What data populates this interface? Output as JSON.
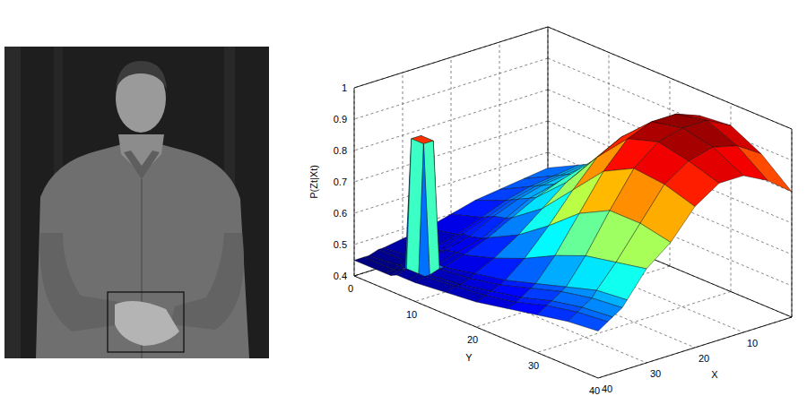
{
  "chart_data": {
    "type": "surface",
    "zlabel": "P(Zt|Xt)",
    "xlabel": "X",
    "ylabel": "Y",
    "x": [
      0,
      5,
      10,
      15,
      20,
      25,
      30,
      34,
      35,
      37,
      38,
      40
    ],
    "y": [
      0,
      5,
      6,
      7,
      9,
      10,
      15,
      20,
      25,
      30,
      35,
      40
    ],
    "z": [
      [
        0.55,
        0.54,
        0.53,
        0.52,
        0.5,
        0.48,
        0.47,
        0.46,
        0.46,
        0.45,
        0.45,
        0.45
      ],
      [
        0.6,
        0.59,
        0.58,
        0.56,
        0.53,
        0.5,
        0.48,
        0.47,
        0.46,
        0.46,
        0.45,
        0.45
      ],
      [
        0.61,
        0.6,
        0.59,
        0.57,
        0.54,
        0.51,
        0.48,
        0.47,
        0.47,
        0.46,
        0.46,
        0.45
      ],
      [
        0.62,
        0.61,
        0.6,
        0.58,
        0.55,
        0.51,
        0.49,
        0.48,
        0.88,
        0.88,
        0.47,
        0.46
      ],
      [
        0.64,
        0.63,
        0.62,
        0.6,
        0.56,
        0.52,
        0.5,
        0.48,
        0.88,
        0.88,
        0.47,
        0.46
      ],
      [
        0.66,
        0.65,
        0.64,
        0.61,
        0.57,
        0.53,
        0.5,
        0.48,
        0.48,
        0.47,
        0.47,
        0.46
      ],
      [
        0.76,
        0.76,
        0.74,
        0.7,
        0.64,
        0.58,
        0.53,
        0.5,
        0.49,
        0.48,
        0.48,
        0.47
      ],
      [
        0.86,
        0.87,
        0.86,
        0.82,
        0.74,
        0.65,
        0.57,
        0.52,
        0.51,
        0.5,
        0.49,
        0.48
      ],
      [
        0.92,
        0.95,
        0.95,
        0.92,
        0.84,
        0.73,
        0.62,
        0.55,
        0.54,
        0.52,
        0.51,
        0.5
      ],
      [
        0.93,
        0.97,
        0.97,
        0.95,
        0.89,
        0.78,
        0.66,
        0.58,
        0.57,
        0.55,
        0.54,
        0.52
      ],
      [
        0.88,
        0.93,
        0.95,
        0.93,
        0.88,
        0.78,
        0.68,
        0.61,
        0.59,
        0.57,
        0.56,
        0.54
      ],
      [
        0.8,
        0.86,
        0.9,
        0.9,
        0.85,
        0.76,
        0.7,
        0.62,
        0.6,
        0.58,
        0.57,
        0.55
      ]
    ],
    "xlim": [
      0,
      40
    ],
    "ylim": [
      0,
      40
    ],
    "zlim": [
      0.4,
      1
    ],
    "xticks": [
      10,
      20,
      30,
      40
    ],
    "yticks": [
      0,
      10,
      20,
      30,
      40
    ],
    "zticks": [
      0.4,
      0.5,
      0.6,
      0.7,
      0.8,
      0.9,
      1
    ],
    "grid": true
  }
}
